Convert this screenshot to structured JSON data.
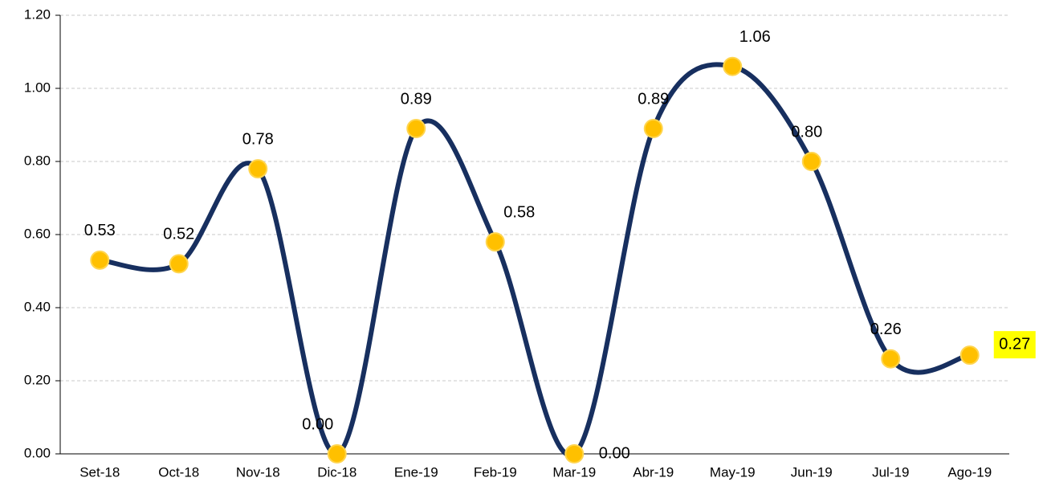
{
  "chart_data": {
    "type": "line",
    "categories": [
      "Set-18",
      "Oct-18",
      "Nov-18",
      "Dic-18",
      "Ene-19",
      "Feb-19",
      "Mar-19",
      "Abr-19",
      "May-19",
      "Jun-19",
      "Jul-19",
      "Ago-19"
    ],
    "series": [
      {
        "color": "#172f5f",
        "marker_color": "#ffc000",
        "values": [
          0.53,
          0.52,
          0.78,
          0,
          0.89,
          0.58,
          0,
          0.89,
          1.06,
          0.8,
          0.26,
          0.27
        ],
        "value_labels": [
          "0.53",
          "0.52",
          "0.78",
          "0.00",
          "0.89",
          "0.58",
          "0.00",
          "0.89",
          "1.06",
          "0.80",
          "0.26",
          "0.27"
        ]
      }
    ],
    "ylim": [
      0,
      1.2
    ],
    "yticks": [
      {
        "value": 0,
        "label": "0.00"
      },
      {
        "value": 0.2,
        "label": "0.20"
      },
      {
        "value": 0.4,
        "label": "0.40"
      },
      {
        "value": 0.6,
        "label": "0.60"
      },
      {
        "value": 0.8,
        "label": "0.80"
      },
      {
        "value": 1,
        "label": "1.00"
      },
      {
        "value": 1.2,
        "label": "1.20"
      }
    ],
    "grid": true,
    "smooth": true,
    "last_label_highlight": "#ffff00"
  }
}
